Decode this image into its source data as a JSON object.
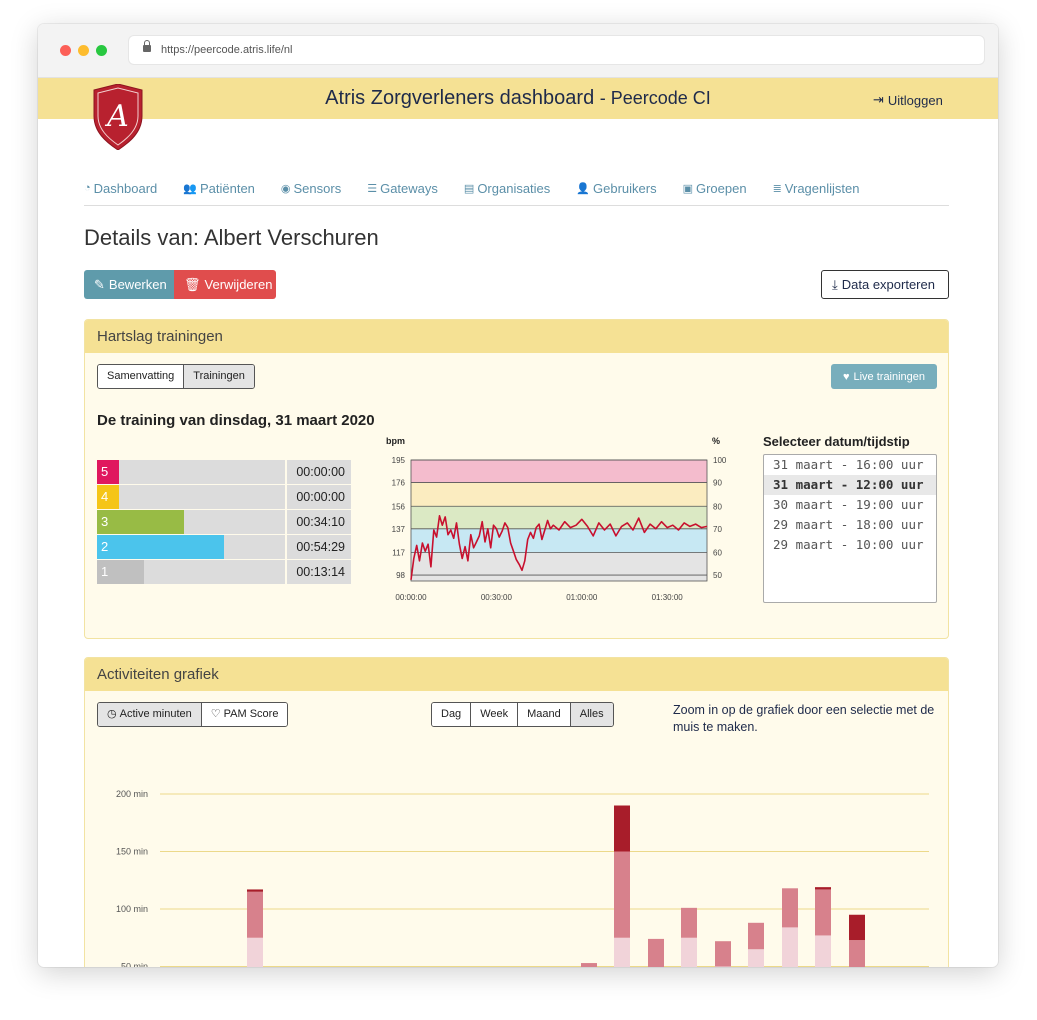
{
  "browser": {
    "url": "https://peercode.atris.life/nl"
  },
  "header": {
    "title": "Atris Zorgverleners dashboard",
    "subtitle": "- Peercode CI",
    "logout": "Uitloggen",
    "logo_letter": "A"
  },
  "nav": [
    {
      "label": "Dashboard",
      "icon": "dashboard-icon"
    },
    {
      "label": "Patiënten",
      "icon": "users-icon"
    },
    {
      "label": "Sensors",
      "icon": "sensor-icon"
    },
    {
      "label": "Gateways",
      "icon": "server-icon"
    },
    {
      "label": "Organisaties",
      "icon": "clipboard-icon"
    },
    {
      "label": "Gebruikers",
      "icon": "user-icon"
    },
    {
      "label": "Groepen",
      "icon": "briefcase-icon"
    },
    {
      "label": "Vragenlijsten",
      "icon": "list-icon"
    }
  ],
  "page": {
    "title": "Details van: Albert Verschuren",
    "edit": "Bewerken",
    "delete": "Verwijderen",
    "export": "Data exporteren"
  },
  "hr_panel": {
    "title": "Hartslag trainingen",
    "tabs": [
      "Samenvatting",
      "Trainingen"
    ],
    "active_tab": "Trainingen",
    "live": "Live trainingen",
    "training_title": "De training van dinsdag, 31 maart 2020",
    "zones": [
      {
        "zone": "5",
        "time": "00:00:00",
        "fraction": 0.0,
        "color": "#e0185e"
      },
      {
        "zone": "4",
        "time": "00:00:00",
        "fraction": 0.0,
        "color": "#f5c518"
      },
      {
        "zone": "3",
        "time": "00:34:10",
        "fraction": 0.39,
        "color": "#98bb45"
      },
      {
        "zone": "2",
        "time": "00:54:29",
        "fraction": 0.63,
        "color": "#4bc4ec"
      },
      {
        "zone": "1",
        "time": "00:13:14",
        "fraction": 0.15,
        "color": "#c0c0c0"
      }
    ],
    "select_label": "Selecteer datum/tijdstip",
    "options": [
      "31 maart - 16:00 uur",
      "31 maart - 12:00 uur",
      "30 maart - 19:00 uur",
      "29 maart - 18:00 uur",
      "29 maart - 10:00 uur"
    ],
    "selected_option": "31 maart - 12:00 uur"
  },
  "activity_panel": {
    "title": "Activiteiten grafiek",
    "metric_tabs": [
      "Active minuten",
      "PAM Score"
    ],
    "active_metric": "Active minuten",
    "range_tabs": [
      "Dag",
      "Week",
      "Maand",
      "Alles"
    ],
    "active_range": "Alles",
    "zoom_hint": "Zoom in op de grafiek door een selectie met de muis te maken."
  },
  "chart_data": [
    {
      "type": "line",
      "ylabel_left": "bpm",
      "ylabel_right": "%",
      "y_ticks_left": [
        98,
        117,
        137,
        156,
        176,
        195
      ],
      "y_ticks_right": [
        50,
        60,
        70,
        80,
        90,
        100
      ],
      "x_ticks": [
        "00:00:00",
        "00:30:00",
        "01:00:00",
        "01:30:00"
      ],
      "ylim": [
        93,
        195
      ],
      "zone_bands": [
        {
          "from": 176,
          "to": 195,
          "color": "#f4bccd"
        },
        {
          "from": 156,
          "to": 176,
          "color": "#fbecc0"
        },
        {
          "from": 137,
          "to": 156,
          "color": "#dbe9c4"
        },
        {
          "from": 117,
          "to": 137,
          "color": "#c7e8f3"
        },
        {
          "from": 93,
          "to": 117,
          "color": "#e4e4e4"
        }
      ],
      "series": [
        {
          "color": "#c8102e",
          "x_minutes": [
            0,
            1,
            2,
            3,
            4,
            5,
            6,
            7,
            8,
            9,
            10,
            11,
            12,
            13,
            14,
            15,
            16,
            17,
            18,
            19,
            20,
            21,
            22,
            23,
            24,
            25,
            26,
            27,
            28,
            29,
            30,
            31,
            32,
            33,
            34,
            35,
            36,
            37,
            38,
            39,
            40,
            41,
            42,
            43,
            44,
            45,
            46,
            47,
            48,
            49,
            50,
            52,
            54,
            56,
            58,
            60,
            62,
            64,
            66,
            68,
            70,
            72,
            74,
            76,
            78,
            80,
            82,
            84,
            86,
            88,
            90,
            92,
            94,
            96,
            98,
            100,
            102,
            104
          ],
          "bpm": [
            94,
            112,
            123,
            110,
            125,
            118,
            124,
            105,
            136,
            130,
            148,
            140,
            147,
            132,
            136,
            129,
            142,
            124,
            112,
            122,
            110,
            132,
            121,
            126,
            131,
            143,
            126,
            137,
            121,
            140,
            137,
            130,
            135,
            142,
            138,
            125,
            118,
            111,
            107,
            102,
            110,
            128,
            134,
            129,
            138,
            141,
            128,
            136,
            144,
            137,
            140,
            136,
            143,
            138,
            140,
            145,
            139,
            131,
            142,
            136,
            141,
            131,
            139,
            142,
            136,
            146,
            134,
            141,
            137,
            143,
            138,
            140,
            136,
            142,
            139,
            141,
            138,
            139
          ]
        }
      ]
    },
    {
      "type": "bar",
      "ylabel": "",
      "y_ticks": [
        "50 min",
        "100 min",
        "150 min",
        "200 min"
      ],
      "y_tick_values": [
        50,
        100,
        150,
        200
      ],
      "ylim": [
        40,
        200
      ],
      "stacked": true,
      "series_colors": [
        "#f1d3d9",
        "#d7818c",
        "#a81d2a"
      ],
      "bars": [
        {
          "x": 1,
          "segments": [
            75,
            40,
            2
          ]
        },
        {
          "x": 2,
          "segments": [
            35,
            18,
            0
          ]
        },
        {
          "x": 3,
          "segments": [
            75,
            75,
            40
          ]
        },
        {
          "x": 4,
          "segments": [
            48,
            26,
            0
          ]
        },
        {
          "x": 5,
          "segments": [
            75,
            26,
            0
          ]
        },
        {
          "x": 6,
          "segments": [
            50,
            22,
            0
          ]
        },
        {
          "x": 7,
          "segments": [
            65,
            23,
            0
          ]
        },
        {
          "x": 8,
          "segments": [
            84,
            34,
            0
          ]
        },
        {
          "x": 9,
          "segments": [
            77,
            40,
            2
          ]
        },
        {
          "x": 10,
          "segments": [
            0,
            73,
            22
          ]
        }
      ]
    }
  ]
}
